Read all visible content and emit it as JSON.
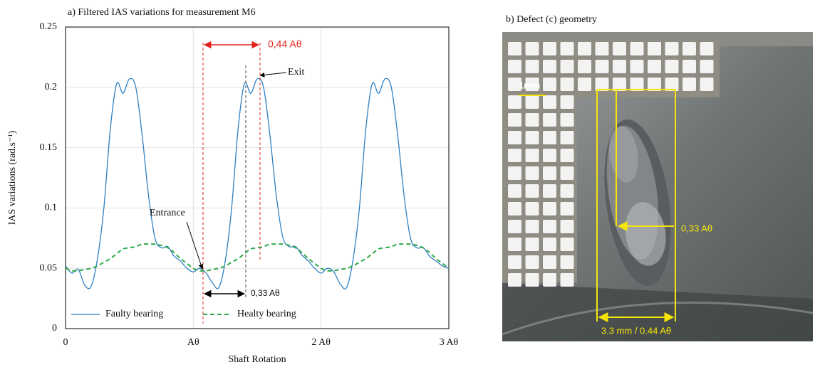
{
  "chart_data": {
    "type": "line",
    "title": "a) Filtered IAS variations for measurement M6",
    "x_label": "Shaft Rotation",
    "y_label": "IAS variations (rad.s⁻¹)",
    "x": [
      0,
      0.05,
      0.1,
      0.15,
      0.2,
      0.25,
      0.3,
      0.35,
      0.4,
      0.45,
      0.5,
      0.55,
      0.6,
      0.65,
      0.7,
      0.75,
      0.8,
      0.85,
      0.9,
      0.95,
      1,
      1.05,
      1.1,
      1.15,
      1.2,
      1.25,
      1.3,
      1.35,
      1.4,
      1.45,
      1.5,
      1.55,
      1.6,
      1.65,
      1.7,
      1.75,
      1.8,
      1.85,
      1.9,
      1.95,
      2,
      2.05,
      2.1,
      2.15,
      2.2,
      2.25,
      2.3,
      2.35,
      2.4,
      2.45,
      2.5,
      2.55,
      2.6,
      2.65,
      2.7,
      2.75,
      2.8,
      2.85,
      2.9,
      2.95,
      3
    ],
    "series": [
      {
        "name": "Faulty bearing",
        "color": "#2f7fc1",
        "line_style": "solid",
        "values": [
          0.052,
          0.046,
          0.049,
          0.036,
          0.035,
          0.058,
          0.1,
          0.165,
          0.203,
          0.195,
          0.207,
          0.2,
          0.16,
          0.11,
          0.075,
          0.067,
          0.068,
          0.06,
          0.056,
          0.05,
          0.047,
          0.05,
          0.046,
          0.038,
          0.034,
          0.056,
          0.1,
          0.165,
          0.203,
          0.195,
          0.207,
          0.2,
          0.16,
          0.11,
          0.076,
          0.068,
          0.068,
          0.061,
          0.056,
          0.05,
          0.046,
          0.05,
          0.047,
          0.037,
          0.034,
          0.057,
          0.1,
          0.165,
          0.203,
          0.195,
          0.207,
          0.2,
          0.16,
          0.11,
          0.075,
          0.067,
          0.067,
          0.06,
          0.056,
          0.052,
          0.05
        ]
      },
      {
        "name": "Healty bearing",
        "color": "#2eaa4a",
        "line_style": "dashed",
        "values": [
          0.05,
          0.048,
          0.048,
          0.049,
          0.05,
          0.052,
          0.055,
          0.058,
          0.062,
          0.066,
          0.067,
          0.068,
          0.07,
          0.07,
          0.07,
          0.069,
          0.067,
          0.063,
          0.058,
          0.054,
          0.05,
          0.048,
          0.048,
          0.049,
          0.05,
          0.052,
          0.055,
          0.058,
          0.062,
          0.066,
          0.067,
          0.068,
          0.07,
          0.07,
          0.07,
          0.069,
          0.067,
          0.063,
          0.058,
          0.054,
          0.05,
          0.048,
          0.048,
          0.049,
          0.05,
          0.052,
          0.055,
          0.058,
          0.062,
          0.066,
          0.067,
          0.068,
          0.07,
          0.07,
          0.07,
          0.069,
          0.067,
          0.063,
          0.058,
          0.054,
          0.05
        ]
      }
    ],
    "xlim": [
      0,
      3
    ],
    "xticks": [
      0,
      {
        "value": 1,
        "label": "Aθ"
      },
      {
        "value": 2,
        "label": "2 Aθ"
      },
      {
        "value": 3,
        "label": "3 Aθ"
      }
    ],
    "ylim": [
      0,
      0.25
    ],
    "yticks": [
      0,
      0.05,
      0.1,
      0.15,
      0.2,
      0.25
    ],
    "grid": true,
    "legend": "lower left",
    "annotations": [
      "0,44 Aθ",
      "Exit",
      "Entrance",
      "0,33 Aθ"
    ]
  },
  "image": {
    "title": "b) Defect (c) geometry",
    "scale_label": "1mm",
    "depth_label": "0,33 Aθ",
    "length_label": "3.3 mm / 0.44 Aθ"
  }
}
